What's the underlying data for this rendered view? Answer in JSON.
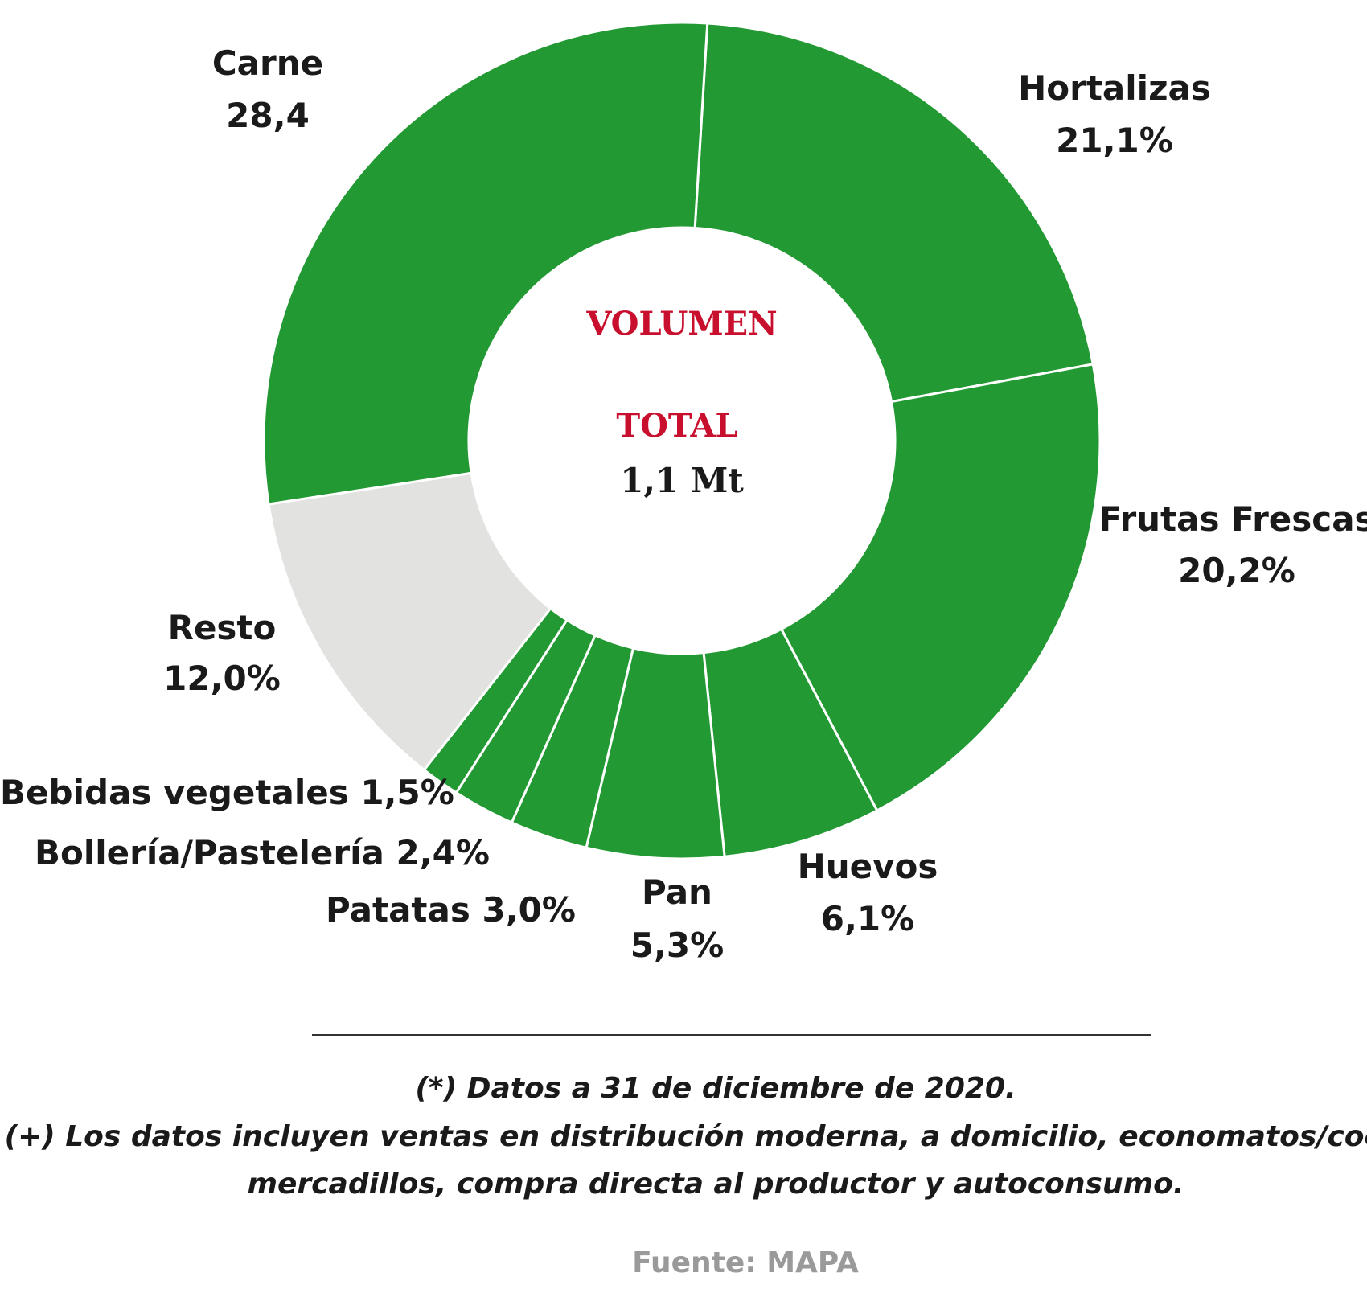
{
  "chart_data": {
    "type": "pie",
    "variant": "donut",
    "slices": [
      {
        "label": "Hortalizas",
        "value": 21.1,
        "value_label": "21,1%",
        "color": "#229933"
      },
      {
        "label": "Frutas Frescas",
        "value": 20.2,
        "value_label": "20,2%",
        "color": "#229933"
      },
      {
        "label": "Huevos",
        "value": 6.1,
        "value_label": "6,1%",
        "color": "#229933"
      },
      {
        "label": "Pan",
        "value": 5.3,
        "value_label": "5,3%",
        "color": "#229933"
      },
      {
        "label": "Patatas",
        "value": 3.0,
        "value_label": "3,0%",
        "color": "#229933"
      },
      {
        "label": "Bollería/Pastelería",
        "value": 2.4,
        "value_label": "2,4%",
        "color": "#229933"
      },
      {
        "label": "Bebidas vegetales",
        "value": 1.5,
        "value_label": "1,5%",
        "color": "#229933"
      },
      {
        "label": "Resto",
        "value": 12.0,
        "value_label": "12,0%",
        "color": "#e2e3e0"
      },
      {
        "label": "Carne",
        "value": 28.4,
        "value_label": "28,4",
        "color": "#229933"
      }
    ],
    "center": {
      "line1": "VOLUMEN",
      "line2": "TOTAL",
      "line3": "1,1 Mt"
    }
  },
  "notes": [
    "(*) Datos a 31 de diciembre de 2020.",
    "(+) Los datos incluyen ventas en distribución moderna, a domicilio, economatos/coop.,",
    "mercadillos, compra directa al productor y autoconsumo."
  ],
  "source": "Fuente: MAPA",
  "colors": {
    "slice_green": "#229933",
    "slice_grey": "#e2e3e0",
    "center_red": "#c8102e"
  }
}
